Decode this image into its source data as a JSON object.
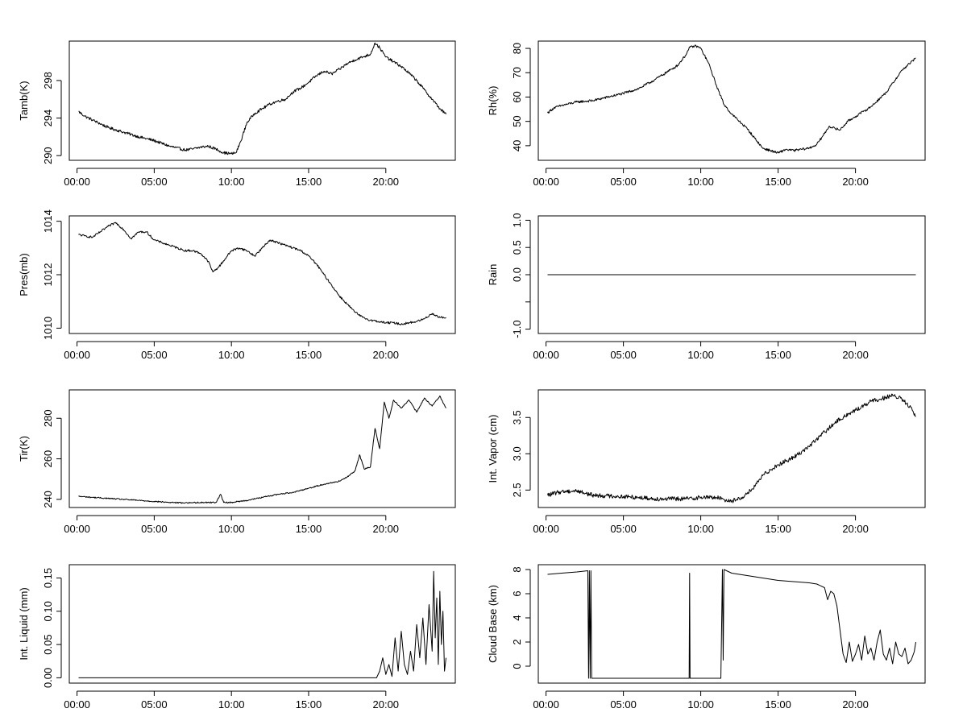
{
  "chart_data": [
    {
      "id": "tamb",
      "type": "line",
      "ylabel": "Tamb(K)",
      "xlabel": "",
      "xlim": [
        0,
        24
      ],
      "ylim": [
        289.5,
        302.2
      ],
      "xticks": [
        0,
        5,
        10,
        15,
        20
      ],
      "xtick_labels": [
        "00:00",
        "05:00",
        "10:00",
        "15:00",
        "20:00"
      ],
      "yticks": [
        290,
        294,
        298
      ],
      "ytick_labels": [
        "290",
        "294",
        "298"
      ],
      "noise": 0.15,
      "series": [
        {
          "name": "Tamb",
          "x": [
            0.1,
            0.5,
            1,
            2,
            3,
            4,
            5,
            6,
            7,
            7.5,
            8,
            8.5,
            9,
            9.5,
            10,
            10.3,
            10.6,
            11,
            11.5,
            12,
            12.5,
            13,
            13.5,
            14,
            14.5,
            15,
            15.5,
            16,
            16.5,
            17,
            17.5,
            18,
            18.5,
            19,
            19.3,
            19.6,
            20,
            20.5,
            21,
            21.5,
            22,
            22.5,
            23,
            23.5,
            23.9
          ],
          "y": [
            294.7,
            294.2,
            293.8,
            293.0,
            292.5,
            292.0,
            291.6,
            291.0,
            290.6,
            290.7,
            290.9,
            291.0,
            290.7,
            290.3,
            290.2,
            290.3,
            291.5,
            293.5,
            294.5,
            295.0,
            295.5,
            295.8,
            296.0,
            296.8,
            297.2,
            297.8,
            298.5,
            299.0,
            298.7,
            299.2,
            299.8,
            300.2,
            300.5,
            300.8,
            302.0,
            301.5,
            300.5,
            300.0,
            299.5,
            298.8,
            298.0,
            297.0,
            296.0,
            295.0,
            294.4
          ]
        }
      ]
    },
    {
      "id": "rh",
      "type": "line",
      "ylabel": "Rh(%)",
      "xlabel": "",
      "xlim": [
        0,
        24
      ],
      "ylim": [
        34,
        83
      ],
      "xticks": [
        0,
        5,
        10,
        15,
        20
      ],
      "xtick_labels": [
        "00:00",
        "05:00",
        "10:00",
        "15:00",
        "20:00"
      ],
      "yticks": [
        40,
        50,
        60,
        70,
        80
      ],
      "ytick_labels": [
        "40",
        "50",
        "60",
        "70",
        "80"
      ],
      "noise": 0.5,
      "series": [
        {
          "name": "Rh",
          "x": [
            0.1,
            0.5,
            1,
            2,
            3,
            4,
            5,
            6,
            7,
            8,
            8.5,
            9,
            9.3,
            9.7,
            10,
            10.5,
            11,
            11.5,
            12,
            12.5,
            13,
            13.5,
            14,
            15,
            15.5,
            16,
            17,
            17.5,
            18,
            18.3,
            18.7,
            19,
            19.5,
            20,
            20.5,
            21,
            22,
            23,
            23.9
          ],
          "y": [
            53.5,
            55.5,
            56.5,
            58.0,
            58.5,
            60.0,
            61.5,
            63.5,
            67.0,
            71.0,
            73.0,
            77.0,
            80.5,
            81.0,
            80.0,
            74.0,
            65.0,
            57.0,
            53.0,
            50.0,
            47.0,
            43.0,
            39.0,
            37.0,
            38.5,
            38.0,
            39.0,
            40.5,
            45.0,
            48.0,
            47.0,
            46.5,
            50.0,
            52.0,
            54.0,
            56.0,
            62.0,
            71.0,
            76.0
          ]
        }
      ]
    },
    {
      "id": "pres",
      "type": "line",
      "ylabel": "Pres(mb)",
      "xlabel": "",
      "xlim": [
        0,
        24
      ],
      "ylim": [
        1009.8,
        1014.2
      ],
      "xticks": [
        0,
        5,
        10,
        15,
        20
      ],
      "xtick_labels": [
        "00:00",
        "05:00",
        "10:00",
        "15:00",
        "20:00"
      ],
      "yticks": [
        1010,
        1012,
        1014
      ],
      "ytick_labels": [
        "1010",
        "1012",
        "1014"
      ],
      "noise": 0.04,
      "series": [
        {
          "name": "Pres",
          "x": [
            0.1,
            0.5,
            1,
            1.5,
            2,
            2.5,
            3,
            3.5,
            4,
            4.5,
            5,
            5.5,
            6,
            6.5,
            7,
            7.5,
            8,
            8.5,
            8.8,
            9.2,
            9.6,
            10,
            10.5,
            11,
            11.5,
            12,
            12.5,
            13,
            13.5,
            14,
            14.5,
            15,
            15.5,
            16,
            16.5,
            17,
            17.5,
            18,
            18.5,
            19,
            19.5,
            20,
            20.5,
            21,
            21.5,
            22,
            22.5,
            23,
            23.5,
            23.9
          ],
          "y": [
            1013.5,
            1013.45,
            1013.4,
            1013.6,
            1013.8,
            1013.95,
            1013.7,
            1013.35,
            1013.6,
            1013.6,
            1013.3,
            1013.2,
            1013.1,
            1013.0,
            1012.9,
            1012.9,
            1012.8,
            1012.5,
            1012.1,
            1012.3,
            1012.6,
            1012.9,
            1013.0,
            1012.9,
            1012.7,
            1013.0,
            1013.3,
            1013.2,
            1013.1,
            1013.0,
            1012.9,
            1012.7,
            1012.4,
            1012.0,
            1011.6,
            1011.2,
            1010.9,
            1010.6,
            1010.4,
            1010.3,
            1010.25,
            1010.2,
            1010.2,
            1010.15,
            1010.2,
            1010.25,
            1010.35,
            1010.55,
            1010.4,
            1010.4
          ]
        }
      ]
    },
    {
      "id": "rain",
      "type": "line",
      "ylabel": "Rain",
      "xlabel": "",
      "xlim": [
        0,
        24
      ],
      "ylim": [
        -1.08,
        1.08
      ],
      "xticks": [
        0,
        5,
        10,
        15,
        20
      ],
      "xtick_labels": [
        "00:00",
        "05:00",
        "10:00",
        "15:00",
        "20:00"
      ],
      "yticks": [
        -1.0,
        -0.5,
        0.0,
        0.5,
        1.0
      ],
      "ytick_labels": [
        "-1.0",
        "",
        "0.0",
        "0.5",
        "1.0"
      ],
      "noise": 0,
      "series": [
        {
          "name": "Rain",
          "x": [
            0.1,
            23.9
          ],
          "y": [
            0,
            0
          ]
        }
      ]
    },
    {
      "id": "tir",
      "type": "line",
      "ylabel": "Tir(K)",
      "xlabel": "",
      "xlim": [
        0,
        24
      ],
      "ylim": [
        236,
        294
      ],
      "xticks": [
        0,
        5,
        10,
        15,
        20
      ],
      "xtick_labels": [
        "00:00",
        "05:00",
        "10:00",
        "15:00",
        "20:00"
      ],
      "yticks": [
        240,
        260,
        280
      ],
      "ytick_labels": [
        "240",
        "260",
        "280"
      ],
      "noise": 0.3,
      "series": [
        {
          "name": "Tir",
          "x": [
            0.1,
            1,
            2,
            3,
            4,
            5,
            6,
            7,
            8,
            9,
            9.3,
            9.5,
            10,
            11,
            12,
            13,
            14,
            15,
            16,
            17,
            17.5,
            18,
            18.3,
            18.6,
            19,
            19.3,
            19.6,
            19.9,
            20.2,
            20.5,
            21,
            21.5,
            22,
            22.5,
            23,
            23.5,
            23.9
          ],
          "y": [
            241.5,
            241.0,
            240.5,
            240.0,
            239.5,
            239.0,
            238.5,
            238.3,
            238.5,
            238.5,
            242.5,
            238.5,
            238.5,
            239.5,
            241.0,
            242.5,
            243.5,
            245.5,
            247.5,
            249.0,
            251.0,
            254.0,
            262.0,
            255.0,
            256.0,
            275.0,
            265.0,
            288.0,
            280.0,
            289.0,
            285.0,
            289.0,
            283.0,
            290.0,
            286.0,
            291.0,
            285.0
          ]
        }
      ]
    },
    {
      "id": "vapor",
      "type": "line",
      "ylabel": "Int. Vapor (cm)",
      "xlabel": "",
      "xlim": [
        0,
        24
      ],
      "ylim": [
        2.26,
        3.88
      ],
      "xticks": [
        0,
        5,
        10,
        15,
        20
      ],
      "xtick_labels": [
        "00:00",
        "05:00",
        "10:00",
        "15:00",
        "20:00"
      ],
      "yticks": [
        2.5,
        3.0,
        3.5
      ],
      "ytick_labels": [
        "2.5",
        "3.0",
        "3.5"
      ],
      "noise": 0.03,
      "series": [
        {
          "name": "Int. Vapor",
          "x": [
            0.1,
            1,
            2,
            3,
            4,
            5,
            6,
            7,
            8,
            9,
            10,
            11,
            11.5,
            12,
            12.5,
            13,
            13.5,
            14,
            14.5,
            15,
            16,
            17,
            18,
            19,
            20,
            21,
            22,
            22.5,
            23,
            23.5,
            23.9
          ],
          "y": [
            2.43,
            2.48,
            2.49,
            2.43,
            2.42,
            2.41,
            2.4,
            2.38,
            2.38,
            2.38,
            2.4,
            2.4,
            2.37,
            2.35,
            2.38,
            2.45,
            2.55,
            2.7,
            2.78,
            2.85,
            2.95,
            3.1,
            3.3,
            3.48,
            3.6,
            3.72,
            3.78,
            3.8,
            3.75,
            3.65,
            3.52
          ]
        }
      ]
    },
    {
      "id": "liquid",
      "type": "line",
      "ylabel": "Int. Liquid (mm)",
      "xlabel": "",
      "xlim": [
        0,
        24
      ],
      "ylim": [
        -0.008,
        0.17
      ],
      "xticks": [
        0,
        5,
        10,
        15,
        20
      ],
      "xtick_labels": [
        "00:00",
        "05:00",
        "10:00",
        "15:00",
        "20:00"
      ],
      "yticks": [
        0.0,
        0.05,
        0.1,
        0.15
      ],
      "ytick_labels": [
        "0.00",
        "0.05",
        "0.10",
        "0.15"
      ],
      "noise": 0,
      "series": [
        {
          "name": "Int. Liquid",
          "x": [
            0.1,
            19.4,
            19.6,
            19.8,
            20.0,
            20.2,
            20.4,
            20.6,
            20.8,
            21.0,
            21.2,
            21.4,
            21.6,
            21.8,
            22.0,
            22.2,
            22.4,
            22.6,
            22.8,
            23.0,
            23.1,
            23.2,
            23.3,
            23.4,
            23.5,
            23.6,
            23.7,
            23.8,
            23.9
          ],
          "y": [
            0.0,
            0.0,
            0.01,
            0.03,
            0.005,
            0.02,
            0.002,
            0.06,
            0.01,
            0.07,
            0.02,
            0.005,
            0.04,
            0.01,
            0.08,
            0.03,
            0.09,
            0.02,
            0.11,
            0.04,
            0.16,
            0.06,
            0.12,
            0.02,
            0.13,
            0.05,
            0.1,
            0.01,
            0.03
          ]
        }
      ]
    },
    {
      "id": "cloud",
      "type": "line",
      "ylabel": "Cloud Base (km)",
      "xlabel": "",
      "xlim": [
        0,
        24
      ],
      "ylim": [
        -1.4,
        8.4
      ],
      "xticks": [
        0,
        5,
        10,
        15,
        20
      ],
      "xtick_labels": [
        "00:00",
        "05:00",
        "10:00",
        "15:00",
        "20:00"
      ],
      "yticks": [
        0,
        2,
        4,
        6,
        8
      ],
      "ytick_labels": [
        "0",
        "2",
        "4",
        "6",
        "8"
      ],
      "noise": 0,
      "series": [
        {
          "name": "Cloud Base",
          "x": [
            0.1,
            1,
            2,
            2.7,
            2.75,
            2.8,
            2.85,
            2.9,
            2.95,
            3.0,
            3.05,
            9.25,
            9.28,
            9.31,
            11.3,
            11.4,
            11.45,
            11.5,
            12,
            13,
            14,
            15,
            16,
            17,
            17.5,
            18,
            18.2,
            18.4,
            18.6,
            18.8,
            19.0,
            19.2,
            19.4,
            19.6,
            19.8,
            20,
            20.2,
            20.4,
            20.6,
            20.8,
            21,
            21.2,
            21.4,
            21.6,
            21.8,
            22,
            22.2,
            22.4,
            22.6,
            22.8,
            23,
            23.2,
            23.4,
            23.6,
            23.8,
            23.9
          ],
          "y": [
            7.6,
            7.7,
            7.8,
            7.9,
            -1,
            7.9,
            -1,
            7.9,
            -1,
            -1,
            -1,
            -1,
            7.7,
            -1,
            -1,
            8.0,
            0.5,
            8.0,
            7.7,
            7.5,
            7.3,
            7.1,
            7.0,
            6.9,
            6.8,
            6.5,
            5.5,
            6.2,
            6.0,
            5.0,
            3.0,
            1.0,
            0.3,
            2.0,
            0.4,
            1.0,
            1.8,
            0.5,
            2.5,
            1.0,
            1.5,
            0.5,
            2.0,
            3.0,
            1.0,
            0.5,
            1.5,
            0.2,
            2.0,
            1.0,
            0.8,
            1.5,
            0.2,
            0.5,
            1.2,
            2.0
          ]
        }
      ]
    }
  ]
}
